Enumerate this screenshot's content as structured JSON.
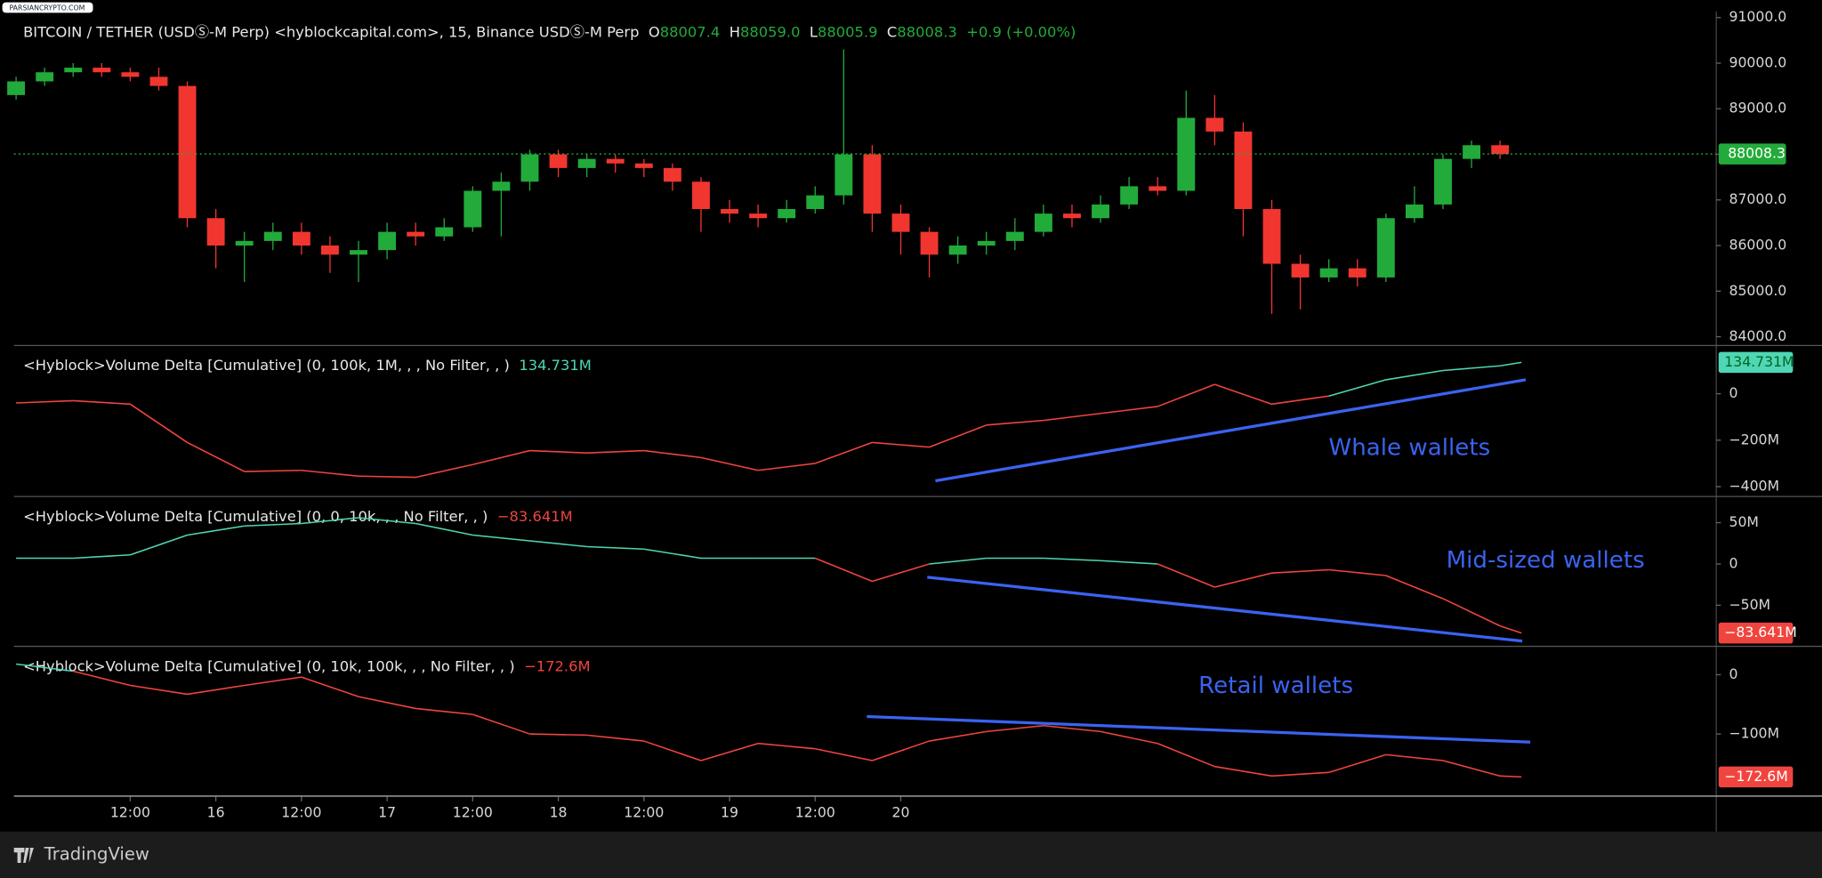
{
  "watermark": "PARSIANCRYPTO.COM",
  "footer": "TradingView",
  "chart_data": [
    {
      "type": "candlestick",
      "title": "BITCOIN / TETHER (USDⓈ-M Perp) <hyblockcapital.com>, 15, Binance USDⓈ-M Perp",
      "legend": [
        "O",
        "88007.4",
        "H",
        "88059.0",
        "L",
        "88005.9",
        "C",
        "88008.3",
        "+0.9 (+0.00%)"
      ],
      "x": [
        -4,
        0,
        4,
        8,
        12,
        16,
        20,
        24,
        28,
        32,
        36,
        40,
        44,
        48,
        52,
        56,
        60,
        64,
        68,
        72,
        76,
        80,
        84,
        88,
        92,
        96,
        100,
        104,
        108,
        112,
        116,
        120,
        124,
        128,
        132,
        136,
        140,
        144,
        148,
        152,
        156,
        160,
        164,
        168,
        172,
        176,
        180,
        184,
        188,
        192,
        196,
        200,
        204
      ],
      "open": [
        89300,
        89600,
        89800,
        89900,
        89800,
        89700,
        89500,
        86600,
        86000,
        86100,
        86300,
        86000,
        85800,
        85900,
        86300,
        86200,
        86400,
        87200,
        87400,
        88000,
        87700,
        87900,
        87800,
        87700,
        87400,
        86800,
        86700,
        86600,
        86800,
        87100,
        88000,
        86700,
        86300,
        85800,
        86000,
        86100,
        86300,
        86700,
        86600,
        86900,
        87300,
        87200,
        88800,
        88500,
        86800,
        85600,
        85300,
        85500,
        85300,
        86600,
        86900,
        87900,
        88200
      ],
      "high": [
        89700,
        89900,
        90000,
        90000,
        89900,
        89900,
        89600,
        86800,
        86300,
        86500,
        86500,
        86200,
        86100,
        86500,
        86500,
        86600,
        87300,
        87600,
        88100,
        88100,
        88000,
        88000,
        87900,
        87800,
        87500,
        87000,
        86900,
        87000,
        87300,
        90300,
        88200,
        86900,
        86400,
        86200,
        86300,
        86600,
        86900,
        86900,
        87100,
        87500,
        87500,
        89400,
        89300,
        88700,
        87000,
        85800,
        85700,
        85700,
        86700,
        87300,
        88000,
        88300,
        88300
      ],
      "low": [
        89200,
        89500,
        89700,
        89700,
        89600,
        89400,
        86400,
        85500,
        85200,
        85900,
        85800,
        85400,
        85200,
        85700,
        86000,
        86100,
        86300,
        86200,
        87200,
        87500,
        87500,
        87600,
        87500,
        87200,
        86300,
        86500,
        86400,
        86500,
        86700,
        86900,
        86300,
        85800,
        85300,
        85600,
        85800,
        85900,
        86200,
        86400,
        86500,
        86800,
        87100,
        87100,
        88200,
        86200,
        84500,
        84600,
        85200,
        85100,
        85200,
        86500,
        86800,
        87700,
        87900
      ],
      "close": [
        89600,
        89800,
        89900,
        89800,
        89700,
        89500,
        86600,
        86000,
        86100,
        86300,
        86000,
        85800,
        85900,
        86300,
        86200,
        86400,
        87200,
        87400,
        88000,
        87700,
        87900,
        87800,
        87700,
        87400,
        86800,
        86700,
        86600,
        86800,
        87100,
        88000,
        86700,
        86300,
        85800,
        86000,
        86100,
        86300,
        86700,
        86600,
        86900,
        87300,
        87200,
        88800,
        88500,
        86800,
        85600,
        85300,
        85500,
        85300,
        86600,
        86900,
        87900,
        88200,
        88008.3
      ],
      "up_color": "#22ab3a",
      "down_color": "#f0362f",
      "last_price": 88008.3,
      "xlim": [
        -4.3,
        234.3
      ],
      "ylim": [
        83820,
        91130
      ],
      "yticks": [
        {
          "value": 84000,
          "label": "84000.0"
        },
        {
          "value": 85000,
          "label": "85000.0"
        },
        {
          "value": 86000,
          "label": "86000.0"
        },
        {
          "value": 87000,
          "label": "87000.0"
        },
        {
          "value": 88000,
          "label": "88000.0"
        },
        {
          "value": 89000,
          "label": "89000.0"
        },
        {
          "value": 90000,
          "label": "90000.0"
        },
        {
          "value": 91000,
          "label": "91000.0"
        }
      ],
      "xticks": [
        {
          "value": 12,
          "label": "12:00"
        },
        {
          "value": 24,
          "label": "16"
        },
        {
          "value": 36,
          "label": "12:00"
        },
        {
          "value": 48,
          "label": "17"
        },
        {
          "value": 60,
          "label": "12:00"
        },
        {
          "value": 72,
          "label": "18"
        },
        {
          "value": 84,
          "label": "12:00"
        },
        {
          "value": 96,
          "label": "19"
        },
        {
          "value": 108,
          "label": "12:00"
        },
        {
          "value": 120,
          "label": "20"
        }
      ]
    },
    {
      "type": "line",
      "title": "<Hyblock>Volume Delta [Cumulative] (0, 100k, 1M, , , No Filter, , )",
      "annotation": "Whale wallets",
      "x": [
        -4,
        4,
        12,
        20,
        28,
        36,
        44,
        52,
        60,
        68,
        76,
        84,
        92,
        100,
        108,
        116,
        124,
        132,
        140,
        148,
        156,
        164,
        172,
        180,
        188,
        196,
        204,
        207
      ],
      "values": [
        -40,
        -30,
        -45,
        -210,
        -335,
        -330,
        -355,
        -360,
        -305,
        -245,
        -255,
        -245,
        -275,
        -330,
        -300,
        -210,
        -230,
        -135,
        -115,
        -85,
        -55,
        40,
        -45,
        -10,
        60,
        100,
        120,
        134.731
      ],
      "last_value": 134.731,
      "last_label": "134.731M",
      "positive_color": "#4fd6b4",
      "negative_color": "#f0453f",
      "xlim": [
        -4.3,
        234.3
      ],
      "ylim": [
        -440,
        205
      ],
      "yticks": [
        {
          "value": -400,
          "label": "−400M"
        },
        {
          "value": -200,
          "label": "−200M"
        },
        0
      ]
    },
    {
      "type": "line",
      "title": "<Hyblock>Volume Delta [Cumulative] (0, 0, 10k, , , No Filter, , )",
      "annotation": "Mid-sized wallets",
      "x": [
        -4,
        4,
        12,
        20,
        28,
        36,
        44,
        52,
        60,
        68,
        76,
        84,
        92,
        100,
        108,
        116,
        124,
        132,
        140,
        148,
        156,
        164,
        172,
        180,
        188,
        196,
        204,
        207
      ],
      "values": [
        7,
        7,
        11,
        35,
        46,
        49,
        56,
        49,
        35,
        28,
        21,
        18,
        7,
        7,
        7,
        -21,
        0,
        7,
        7,
        4,
        0,
        -28,
        -11,
        -7,
        -14,
        -42,
        -75,
        -83.641
      ],
      "last_value": -83.641,
      "last_label": "−83.641M",
      "positive_color": "#4fd6b4",
      "negative_color": "#f0453f",
      "xlim": [
        -4.3,
        234.3
      ],
      "ylim": [
        -99,
        81
      ],
      "yticks": [
        {
          "value": -50,
          "label": "−50M"
        },
        0,
        {
          "value": 50,
          "label": "50M"
        }
      ]
    },
    {
      "type": "line",
      "title": "<Hyblock>Volume Delta [Cumulative] (0, 10k, 100k, , , No Filter, , )",
      "annotation": "Retail wallets",
      "x": [
        -4,
        4,
        12,
        20,
        28,
        36,
        44,
        52,
        60,
        68,
        76,
        84,
        92,
        100,
        108,
        116,
        124,
        132,
        140,
        148,
        156,
        164,
        172,
        180,
        188,
        196,
        204,
        207
      ],
      "values": [
        18,
        6,
        -18,
        -33,
        -18,
        -4,
        -37,
        -57,
        -67,
        -100,
        -102,
        -112,
        -145,
        -116,
        -125,
        -145,
        -112,
        -96,
        -86,
        -96,
        -116,
        -155,
        -171,
        -165,
        -135,
        -145,
        -171,
        -172.6
      ],
      "last_value": -172.6,
      "last_label": "−172.6M",
      "positive_color": "#4fd6b4",
      "negative_color": "#f0453f",
      "xlim": [
        -4.3,
        234.3
      ],
      "ylim": [
        -204,
        47
      ],
      "yticks": [
        {
          "value": -100,
          "label": "−100M"
        },
        0
      ]
    }
  ]
}
